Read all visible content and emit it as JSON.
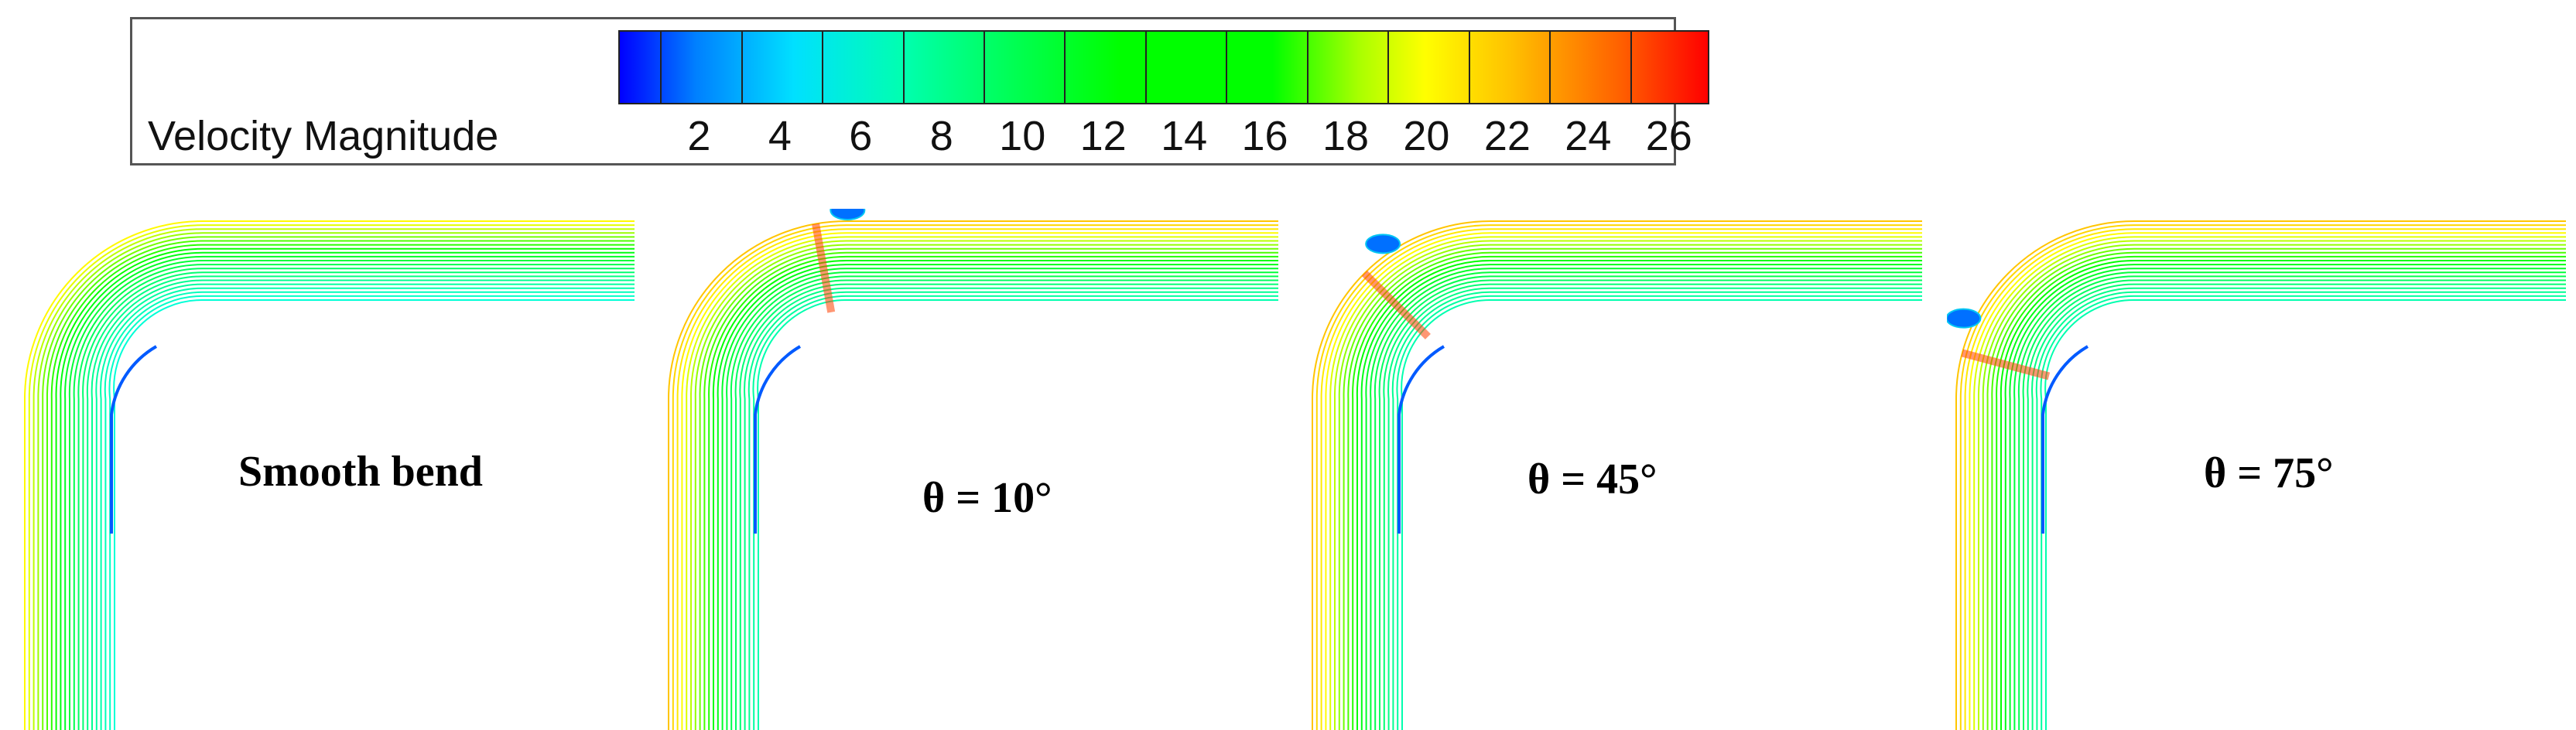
{
  "legend": {
    "title": "Velocity Magnitude",
    "ticks": [
      "2",
      "4",
      "6",
      "8",
      "10",
      "12",
      "14",
      "16",
      "18",
      "20",
      "22",
      "24",
      "26"
    ],
    "min": 0,
    "max": 27,
    "colors": [
      "#0000ff",
      "#00a0ff",
      "#00ffe0",
      "#00ff80",
      "#00ff00",
      "#ffff00",
      "#ff8000",
      "#ff0000"
    ]
  },
  "panels": [
    {
      "label": "Smooth bend",
      "theta": null
    },
    {
      "label": "θ = 10°",
      "theta": 10
    },
    {
      "label": "θ = 45°",
      "theta": 45
    },
    {
      "label": "θ = 75°",
      "theta": 75
    }
  ]
}
